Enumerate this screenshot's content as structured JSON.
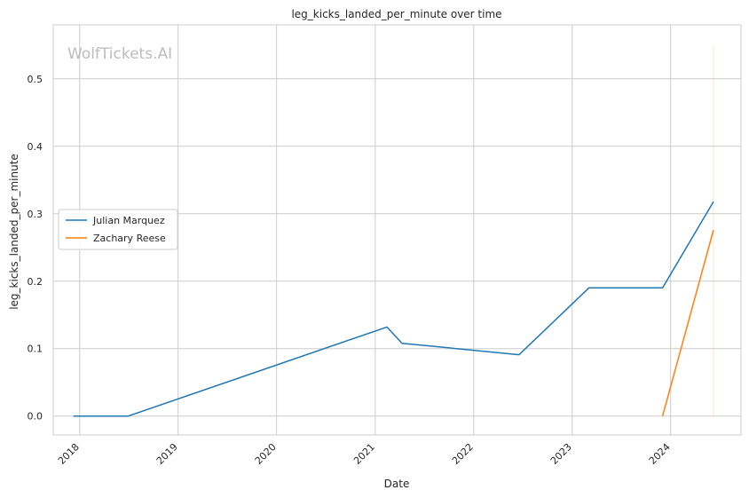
{
  "chart_data": {
    "type": "line",
    "title": "leg_kicks_landed_per_minute over time",
    "xlabel": "Date",
    "ylabel": "leg_kicks_landed_per_minute",
    "watermark": "WolfTickets.AI",
    "x_ticks": [
      "2018",
      "2019",
      "2020",
      "2021",
      "2022",
      "2023",
      "2024"
    ],
    "y_ticks": [
      "0.0",
      "0.1",
      "0.2",
      "0.3",
      "0.4",
      "0.5"
    ],
    "xlim": [
      "2017-09-25",
      "2024-09-18"
    ],
    "ylim": [
      -0.028,
      0.58
    ],
    "grid": true,
    "legend": "center-left",
    "series": [
      {
        "name": "Julian Marquez",
        "color": "#1f77b4",
        "points": [
          {
            "x": "2017-12-09",
            "y": 0.0
          },
          {
            "x": "2018-06-30",
            "y": 0.0
          },
          {
            "x": "2021-02-13",
            "y": 0.132
          },
          {
            "x": "2021-04-10",
            "y": 0.108
          },
          {
            "x": "2022-06-18",
            "y": 0.091
          },
          {
            "x": "2023-03-04",
            "y": 0.19
          },
          {
            "x": "2023-12-02",
            "y": 0.19
          },
          {
            "x": "2024-06-08",
            "y": 0.318
          }
        ]
      },
      {
        "name": "Zachary Reese",
        "color": "#ff7f0e",
        "points": [
          {
            "x": "2023-12-02",
            "y": 0.0
          },
          {
            "x": "2024-06-08",
            "y": 0.276
          }
        ]
      }
    ],
    "reference_line": {
      "x": "2024-06-08",
      "y_range": [
        0.0,
        0.55
      ],
      "color": "#ff7f0e"
    }
  }
}
